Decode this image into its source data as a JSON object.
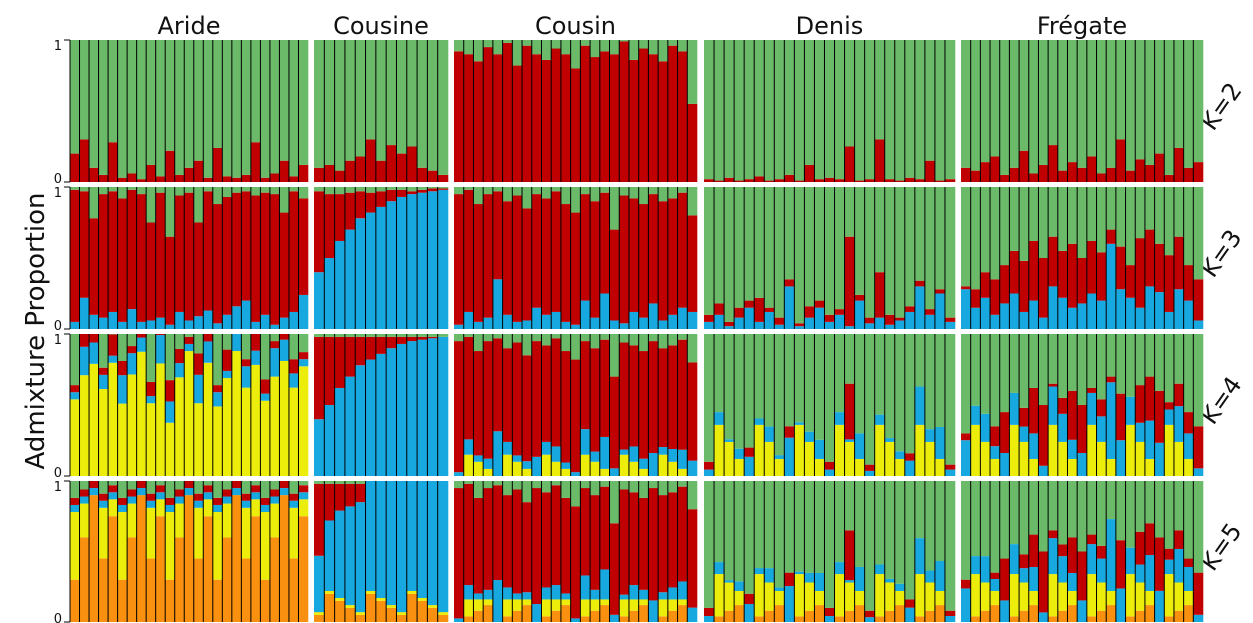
{
  "chart_data": {
    "type": "bar",
    "stacked": true,
    "ylabel": "Admixture Proportion",
    "ylim": [
      0,
      1
    ],
    "y_ticks": [
      "0",
      "1"
    ],
    "islands": [
      "Aride",
      "Cousine",
      "Cousin",
      "Denis",
      "Frégate"
    ],
    "k_labels": [
      "K=2",
      "K=3",
      "K=4",
      "K=5"
    ],
    "colors": {
      "green": "#6aba6a",
      "red": "#c00000",
      "blue": "#17a8e0",
      "yellow": "#eded0c",
      "orange": "#f99010"
    },
    "panels": [
      {
        "island": "Aride",
        "n": 25,
        "k2_red": [
          0.2,
          0.3,
          0.1,
          0.05,
          0.28,
          0.03,
          0.06,
          0.02,
          0.12,
          0.04,
          0.22,
          0.05,
          0.1,
          0.15,
          0.03,
          0.24,
          0.04,
          0.03,
          0.05,
          0.28,
          0.03,
          0.06,
          0.15,
          0.04,
          0.12
        ],
        "k3_blue": [
          0.05,
          0.22,
          0.1,
          0.08,
          0.12,
          0.05,
          0.14,
          0.05,
          0.06,
          0.08,
          0.03,
          0.12,
          0.06,
          0.09,
          0.13,
          0.04,
          0.1,
          0.16,
          0.2,
          0.05,
          0.1,
          0.03,
          0.08,
          0.12,
          0.24
        ],
        "k3_green": [
          0.02,
          0.03,
          0.22,
          0.05,
          0.03,
          0.08,
          0.02,
          0.05,
          0.25,
          0.04,
          0.35,
          0.06,
          0.04,
          0.25,
          0.03,
          0.12,
          0.07,
          0.04,
          0.03,
          0.06,
          0.04,
          0.05,
          0.18,
          0.03,
          0.08
        ]
      },
      {
        "island": "Cousine",
        "n": 13,
        "k2_red": [
          0.1,
          0.12,
          0.08,
          0.15,
          0.18,
          0.3,
          0.15,
          0.26,
          0.2,
          0.25,
          0.1,
          0.08,
          0.05
        ],
        "k3_blue": [
          0.4,
          0.5,
          0.62,
          0.7,
          0.78,
          0.82,
          0.86,
          0.9,
          0.93,
          0.95,
          0.96,
          0.97,
          0.98
        ],
        "k3_green": [
          0.03,
          0.05,
          0.05,
          0.04,
          0.03,
          0.04,
          0.03,
          0.02,
          0.02,
          0.03,
          0.02,
          0.01,
          0.01
        ]
      },
      {
        "island": "Cousin",
        "n": 25,
        "k2_red": [
          0.92,
          0.9,
          0.85,
          0.95,
          0.9,
          0.98,
          0.82,
          0.96,
          0.9,
          0.86,
          0.94,
          0.9,
          0.8,
          0.96,
          0.88,
          0.92,
          0.9,
          0.99,
          0.86,
          0.94,
          0.9,
          0.85,
          0.96,
          0.92,
          0.55
        ],
        "k3_blue": [
          0.03,
          0.12,
          0.05,
          0.08,
          0.35,
          0.1,
          0.05,
          0.06,
          0.15,
          0.1,
          0.12,
          0.05,
          0.03,
          0.2,
          0.08,
          0.25,
          0.06,
          0.04,
          0.12,
          0.08,
          0.18,
          0.06,
          0.1,
          0.15,
          0.12
        ],
        "k3_green": [
          0.05,
          0.02,
          0.12,
          0.05,
          0.03,
          0.1,
          0.06,
          0.15,
          0.05,
          0.08,
          0.03,
          0.12,
          0.18,
          0.05,
          0.1,
          0.04,
          0.3,
          0.06,
          0.08,
          0.12,
          0.05,
          0.1,
          0.08,
          0.04,
          0.2
        ]
      },
      {
        "island": "Denis",
        "n": 25,
        "k2_red": [
          0.02,
          0.01,
          0.03,
          0.01,
          0.02,
          0.04,
          0.01,
          0.02,
          0.05,
          0.01,
          0.12,
          0.02,
          0.03,
          0.02,
          0.25,
          0.01,
          0.02,
          0.3,
          0.02,
          0.01,
          0.03,
          0.02,
          0.15,
          0.01,
          0.02
        ],
        "k3_blue": [
          0.05,
          0.1,
          0.02,
          0.08,
          0.15,
          0.05,
          0.12,
          0.03,
          0.3,
          0.02,
          0.08,
          0.15,
          0.05,
          0.1,
          0.02,
          0.2,
          0.04,
          0.08,
          0.03,
          0.06,
          0.12,
          0.3,
          0.1,
          0.25,
          0.05
        ],
        "k3_green": [
          0.9,
          0.82,
          0.95,
          0.85,
          0.8,
          0.78,
          0.85,
          0.92,
          0.65,
          0.96,
          0.84,
          0.8,
          0.9,
          0.86,
          0.35,
          0.76,
          0.92,
          0.6,
          0.9,
          0.92,
          0.84,
          0.66,
          0.86,
          0.72,
          0.92
        ]
      },
      {
        "island": "Frégate",
        "n": 25,
        "k2_red": [
          0.1,
          0.08,
          0.14,
          0.18,
          0.05,
          0.1,
          0.22,
          0.06,
          0.12,
          0.26,
          0.08,
          0.14,
          0.1,
          0.18,
          0.06,
          0.1,
          0.3,
          0.08,
          0.16,
          0.12,
          0.2,
          0.05,
          0.24,
          0.1,
          0.14
        ],
        "k3_blue": [
          0.28,
          0.15,
          0.22,
          0.1,
          0.18,
          0.25,
          0.12,
          0.2,
          0.08,
          0.3,
          0.22,
          0.15,
          0.18,
          0.25,
          0.2,
          0.6,
          0.28,
          0.22,
          0.15,
          0.3,
          0.26,
          0.12,
          0.28,
          0.2,
          0.06
        ],
        "k3_green": [
          0.7,
          0.72,
          0.6,
          0.65,
          0.55,
          0.45,
          0.52,
          0.38,
          0.5,
          0.35,
          0.45,
          0.4,
          0.5,
          0.38,
          0.46,
          0.3,
          0.42,
          0.55,
          0.36,
          0.3,
          0.4,
          0.48,
          0.35,
          0.55,
          0.65
        ]
      }
    ]
  }
}
